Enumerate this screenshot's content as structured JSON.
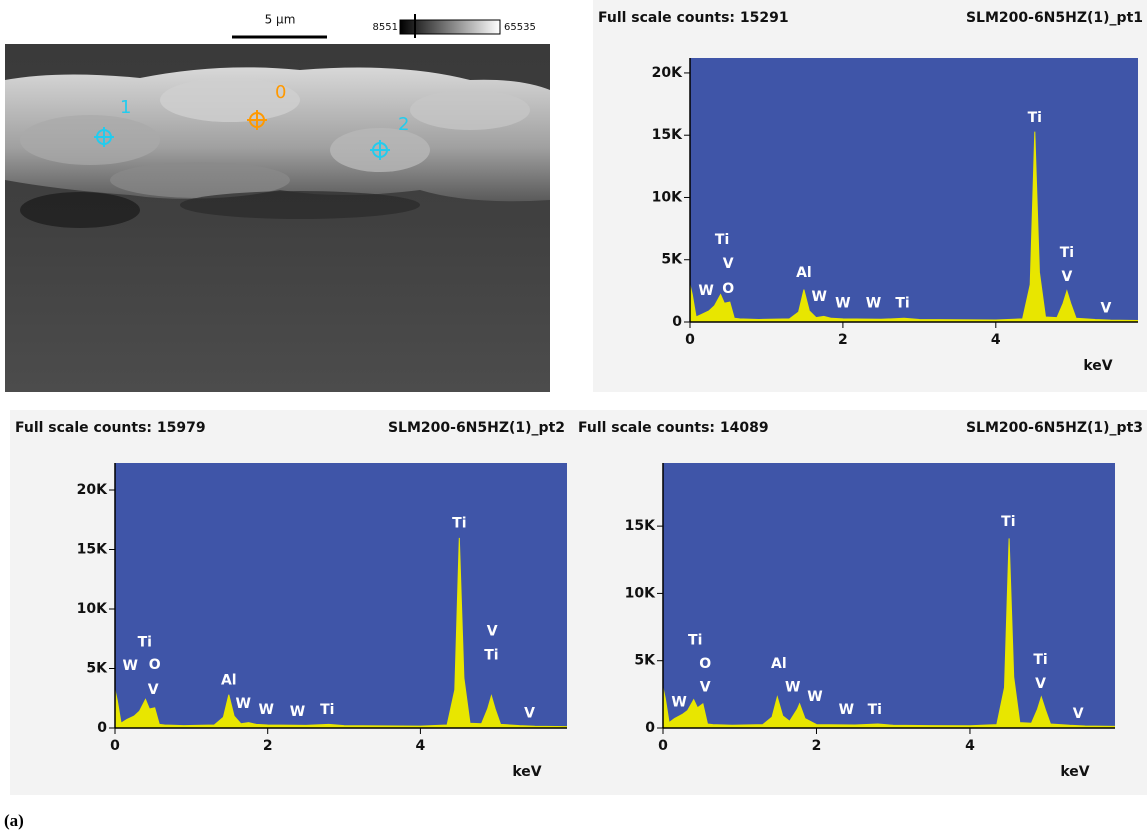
{
  "sem_image": {
    "scale_bar": "5 µm",
    "colorbar_min": "8551",
    "colorbar_max": "65535",
    "points": [
      "0",
      "1",
      "2"
    ]
  },
  "caption": "(a)",
  "chart_data": [
    {
      "type": "area",
      "title": "Full scale counts: 15291",
      "subtitle": "SLM200-6N5HZ(1)_pt1",
      "x_label": "keV",
      "color": "#e8e600",
      "background": "#3f55a8",
      "xlim": [
        0,
        5.86
      ],
      "ylim": [
        0,
        21200
      ],
      "xticks": [
        0,
        2,
        4
      ],
      "yticks": [
        0,
        {
          "value": 5000,
          "label": "5K"
        },
        {
          "value": 10000,
          "label": "10K"
        },
        {
          "value": 15000,
          "label": "15K"
        },
        {
          "value": 20000,
          "label": "20K"
        }
      ],
      "x": [
        0,
        0.03,
        0.08,
        0.15,
        0.25,
        0.32,
        0.4,
        0.45,
        0.52,
        0.58,
        0.65,
        0.9,
        1.3,
        1.42,
        1.49,
        1.56,
        1.65,
        1.75,
        1.85,
        2.0,
        2.5,
        2.8,
        3.0,
        3.5,
        4.0,
        4.35,
        4.45,
        4.51,
        4.57,
        4.65,
        4.8,
        4.88,
        4.93,
        4.98,
        5.05,
        5.3,
        5.5,
        5.86
      ],
      "values": [
        3000,
        2200,
        400,
        600,
        900,
        1300,
        2200,
        1500,
        1600,
        300,
        250,
        200,
        250,
        800,
        2600,
        900,
        350,
        450,
        300,
        250,
        220,
        300,
        200,
        180,
        160,
        250,
        3000,
        15291,
        4000,
        400,
        350,
        1500,
        2500,
        1500,
        300,
        200,
        150,
        120
      ],
      "annotations": [
        {
          "text": "W",
          "x": 0.21,
          "y": 2500
        },
        {
          "text": "Ti",
          "x": 0.42,
          "y": 6580
        },
        {
          "text": "V",
          "x": 0.5,
          "y": 4650
        },
        {
          "text": "O",
          "x": 0.5,
          "y": 2650
        },
        {
          "text": "Al",
          "x": 1.49,
          "y": 3930
        },
        {
          "text": "W",
          "x": 1.69,
          "y": 2000
        },
        {
          "text": "W",
          "x": 2.0,
          "y": 1500
        },
        {
          "text": "W",
          "x": 2.4,
          "y": 1500
        },
        {
          "text": "Ti",
          "x": 2.78,
          "y": 1500
        },
        {
          "text": "Ti",
          "x": 4.51,
          "y": 16400
        },
        {
          "text": "Ti",
          "x": 4.93,
          "y": 5540
        },
        {
          "text": "V",
          "x": 4.93,
          "y": 3600
        },
        {
          "text": "V",
          "x": 5.44,
          "y": 1100
        }
      ]
    },
    {
      "type": "area",
      "title": "Full scale counts: 15979",
      "subtitle": "SLM200-6N5HZ(1)_pt2",
      "x_label": "keV",
      "color": "#e8e600",
      "background": "#3f55a8",
      "xlim": [
        0,
        5.92
      ],
      "ylim": [
        0,
        22270
      ],
      "xticks": [
        0,
        2,
        4
      ],
      "yticks": [
        0,
        {
          "value": 5000,
          "label": "5K"
        },
        {
          "value": 10000,
          "label": "10K"
        },
        {
          "value": 15000,
          "label": "15K"
        },
        {
          "value": 20000,
          "label": "20K"
        }
      ],
      "x": [
        0,
        0.03,
        0.08,
        0.15,
        0.25,
        0.32,
        0.4,
        0.45,
        0.52,
        0.58,
        0.65,
        0.9,
        1.3,
        1.42,
        1.49,
        1.56,
        1.65,
        1.75,
        1.85,
        2.0,
        2.5,
        2.8,
        3.0,
        3.5,
        4.0,
        4.35,
        4.45,
        4.51,
        4.57,
        4.65,
        4.8,
        4.88,
        4.93,
        4.98,
        5.05,
        5.3,
        5.5,
        5.92
      ],
      "values": [
        3200,
        2300,
        400,
        700,
        1000,
        1400,
        2400,
        1600,
        1700,
        300,
        250,
        200,
        250,
        900,
        2800,
        1000,
        350,
        450,
        300,
        250,
        220,
        300,
        200,
        180,
        160,
        250,
        3200,
        15979,
        4200,
        400,
        350,
        1600,
        2700,
        1600,
        300,
        200,
        150,
        120
      ],
      "annotations": [
        {
          "text": "W",
          "x": 0.2,
          "y": 5200
        },
        {
          "text": "Ti",
          "x": 0.39,
          "y": 7200
        },
        {
          "text": "O",
          "x": 0.52,
          "y": 5300
        },
        {
          "text": "V",
          "x": 0.5,
          "y": 3200
        },
        {
          "text": "Al",
          "x": 1.49,
          "y": 4000
        },
        {
          "text": "W",
          "x": 1.68,
          "y": 2000
        },
        {
          "text": "W",
          "x": 1.98,
          "y": 1500
        },
        {
          "text": "W",
          "x": 2.39,
          "y": 1350
        },
        {
          "text": "Ti",
          "x": 2.78,
          "y": 1500
        },
        {
          "text": "Ti",
          "x": 4.51,
          "y": 17200
        },
        {
          "text": "V",
          "x": 4.94,
          "y": 8100
        },
        {
          "text": "Ti",
          "x": 4.93,
          "y": 6100
        },
        {
          "text": "V",
          "x": 5.43,
          "y": 1200
        }
      ]
    },
    {
      "type": "area",
      "title": "Full scale counts: 14089",
      "subtitle": "SLM200-6N5HZ(1)_pt3",
      "x_label": "keV",
      "color": "#e8e600",
      "background": "#3f55a8",
      "xlim": [
        0,
        5.89
      ],
      "ylim": [
        0,
        19690
      ],
      "xticks": [
        0,
        2,
        4
      ],
      "yticks": [
        0,
        {
          "value": 5000,
          "label": "5K"
        },
        {
          "value": 10000,
          "label": "10K"
        },
        {
          "value": 15000,
          "label": "15K"
        }
      ],
      "x": [
        0,
        0.03,
        0.08,
        0.15,
        0.25,
        0.32,
        0.4,
        0.45,
        0.52,
        0.58,
        0.65,
        0.9,
        1.3,
        1.42,
        1.49,
        1.56,
        1.65,
        1.75,
        1.78,
        1.85,
        2.0,
        2.5,
        2.8,
        3.0,
        3.5,
        4.0,
        4.35,
        4.45,
        4.51,
        4.57,
        4.65,
        4.8,
        4.88,
        4.93,
        4.98,
        5.05,
        5.3,
        5.5,
        5.89
      ],
      "values": [
        3000,
        2200,
        400,
        700,
        1000,
        1300,
        2100,
        1500,
        1800,
        300,
        250,
        200,
        250,
        800,
        2300,
        900,
        500,
        1400,
        1800,
        700,
        250,
        220,
        300,
        200,
        180,
        160,
        250,
        3000,
        14089,
        3800,
        400,
        350,
        1400,
        2300,
        1400,
        300,
        200,
        150,
        120
      ],
      "annotations": [
        {
          "text": "W",
          "x": 0.21,
          "y": 1900
        },
        {
          "text": "Ti",
          "x": 0.42,
          "y": 6500
        },
        {
          "text": "O",
          "x": 0.55,
          "y": 4750
        },
        {
          "text": "V",
          "x": 0.55,
          "y": 3000
        },
        {
          "text": "Al",
          "x": 1.51,
          "y": 4750
        },
        {
          "text": "W",
          "x": 1.69,
          "y": 3000
        },
        {
          "text": "W",
          "x": 1.98,
          "y": 2300
        },
        {
          "text": "W",
          "x": 2.39,
          "y": 1350
        },
        {
          "text": "Ti",
          "x": 2.76,
          "y": 1350
        },
        {
          "text": "Ti",
          "x": 4.5,
          "y": 15300
        },
        {
          "text": "Ti",
          "x": 4.92,
          "y": 5050
        },
        {
          "text": "V",
          "x": 4.92,
          "y": 3270
        },
        {
          "text": "V",
          "x": 5.41,
          "y": 1050
        }
      ]
    }
  ]
}
